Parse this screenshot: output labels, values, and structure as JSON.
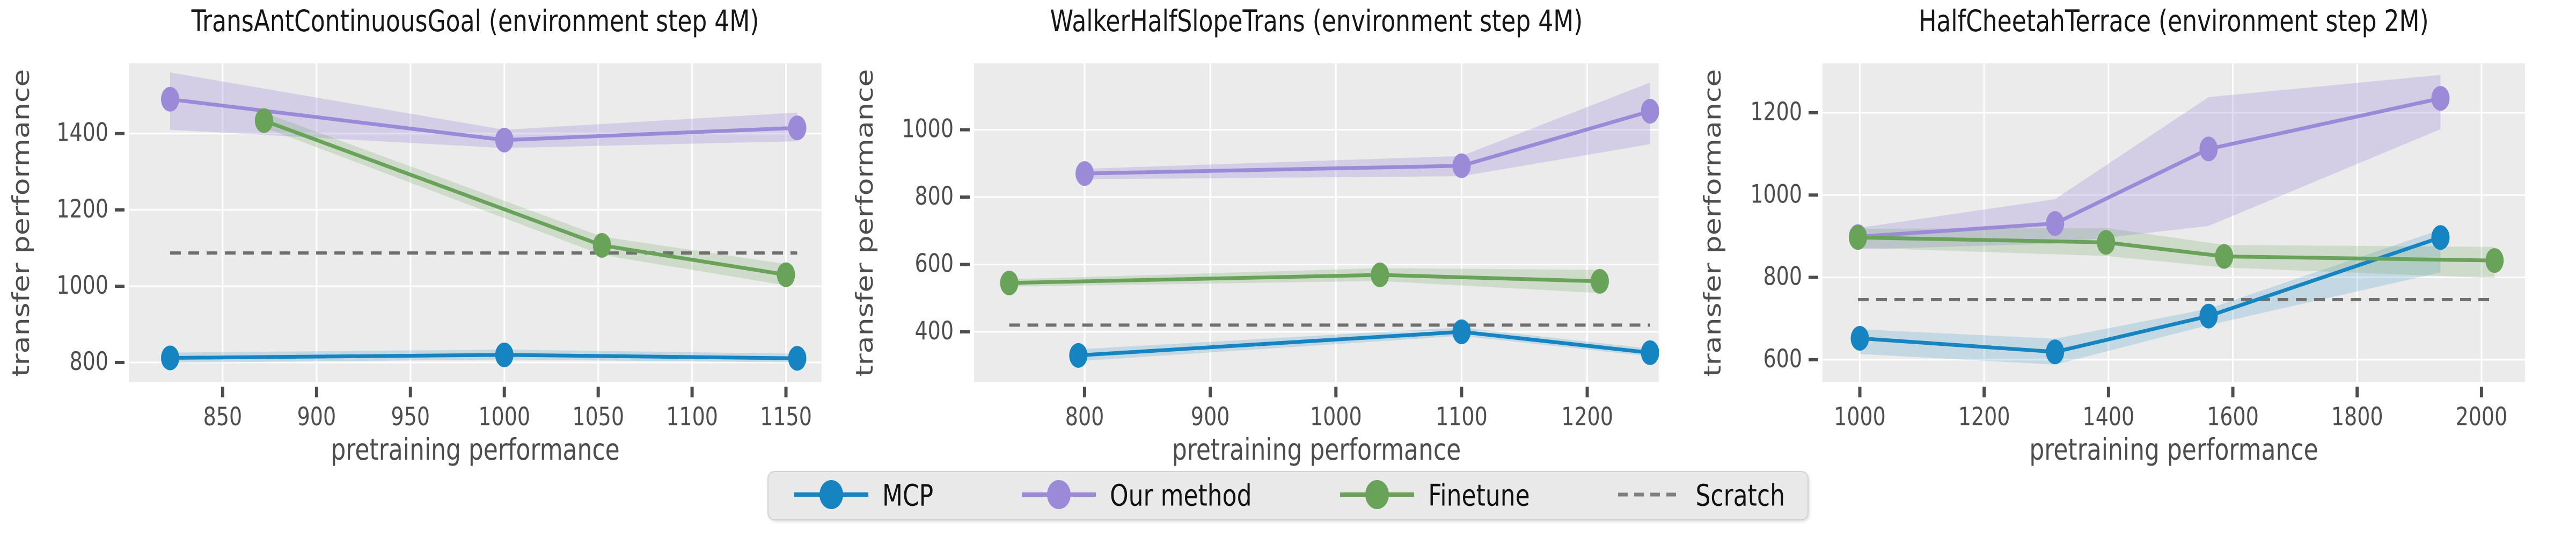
{
  "figure": {
    "background": "#ffffff",
    "plot_background": "#ebebeb",
    "grid_color": "#ffffff",
    "tick_color": "#4d4d4d",
    "label_color": "#4d4d4d",
    "title_color": "#161616",
    "baseline_color": "#707070"
  },
  "legend": {
    "items": [
      {
        "id": "mcp",
        "label": "MCP",
        "color": "#1584c1",
        "style": "line-marker"
      },
      {
        "id": "our-method",
        "label": "Our method",
        "color": "#9a8ad8",
        "style": "line-marker"
      },
      {
        "id": "finetune",
        "label": "Finetune",
        "color": "#69a259",
        "style": "line-marker"
      },
      {
        "id": "scratch",
        "label": "Scratch",
        "color": "#808080",
        "style": "dashed-line"
      }
    ]
  },
  "chart_data": [
    {
      "type": "line",
      "title": "TransAntContinuousGoal (environment step 4M)",
      "xlabel": "pretraining performance",
      "ylabel": "transfer performance",
      "xlim": [
        800,
        1169
      ],
      "ylim": [
        748,
        1584
      ],
      "xticks": [
        850,
        900,
        950,
        1000,
        1050,
        1100,
        1150
      ],
      "yticks": [
        800,
        1000,
        1200,
        1400
      ],
      "grid": true,
      "legend_position": "figure-bottom",
      "baseline": {
        "name": "Scratch",
        "value": 1087
      },
      "series": [
        {
          "name": "MCP",
          "color": "#1584c1",
          "band_opacity": 0.18,
          "x": [
            822,
            1000,
            1156
          ],
          "y": [
            812,
            820,
            811
          ],
          "band_low": [
            799,
            808,
            800
          ],
          "band_high": [
            826,
            834,
            823
          ]
        },
        {
          "name": "Our method",
          "color": "#9a8ad8",
          "band_opacity": 0.3,
          "x": [
            822,
            1000,
            1156
          ],
          "y": [
            1490,
            1383,
            1415
          ],
          "band_low": [
            1410,
            1362,
            1380
          ],
          "band_high": [
            1560,
            1410,
            1455
          ]
        },
        {
          "name": "Finetune",
          "color": "#69a259",
          "band_opacity": 0.22,
          "x": [
            872,
            1052,
            1150
          ],
          "y": [
            1434,
            1107,
            1030
          ],
          "band_low": [
            1416,
            1082,
            1002
          ],
          "band_high": [
            1455,
            1130,
            1058
          ]
        }
      ]
    },
    {
      "type": "line",
      "title": "WalkerHalfSlopeTrans (environment step 4M)",
      "xlabel": "pretraining performance",
      "ylabel": "transfer performance",
      "xlim": [
        712,
        1257
      ],
      "ylim": [
        250,
        1197
      ],
      "xticks": [
        800,
        900,
        1000,
        1100,
        1200
      ],
      "yticks": [
        400,
        600,
        800,
        1000
      ],
      "grid": true,
      "legend_position": "figure-bottom",
      "baseline": {
        "name": "Scratch",
        "value": 420
      },
      "series": [
        {
          "name": "MCP",
          "color": "#1584c1",
          "band_opacity": 0.18,
          "x": [
            795,
            1100,
            1250
          ],
          "y": [
            330,
            400,
            338
          ],
          "band_low": [
            313,
            388,
            327
          ],
          "band_high": [
            348,
            413,
            350
          ]
        },
        {
          "name": "Our method",
          "color": "#9a8ad8",
          "band_opacity": 0.3,
          "x": [
            800,
            1100,
            1250
          ],
          "y": [
            870,
            893,
            1055
          ],
          "band_low": [
            853,
            862,
            957
          ],
          "band_high": [
            884,
            922,
            1140
          ]
        },
        {
          "name": "Finetune",
          "color": "#69a259",
          "band_opacity": 0.22,
          "x": [
            740,
            1035,
            1210
          ],
          "y": [
            545,
            569,
            550
          ],
          "band_low": [
            534,
            551,
            515
          ],
          "band_high": [
            556,
            589,
            584
          ]
        }
      ]
    },
    {
      "type": "line",
      "title": "HalfCheetahTerrace (environment step 2M)",
      "xlabel": "pretraining performance",
      "ylabel": "transfer performance",
      "xlim": [
        940,
        2070
      ],
      "ylim": [
        545,
        1320
      ],
      "xticks": [
        1000,
        1200,
        1400,
        1600,
        1800,
        2000
      ],
      "yticks": [
        600,
        800,
        1000,
        1200
      ],
      "grid": true,
      "legend_position": "figure-bottom",
      "baseline": {
        "name": "Scratch",
        "value": 746
      },
      "series": [
        {
          "name": "MCP",
          "color": "#1584c1",
          "band_opacity": 0.18,
          "x": [
            1000,
            1314,
            1561,
            1934
          ],
          "y": [
            652,
            619,
            706,
            897
          ],
          "band_low": [
            614,
            588,
            684,
            812
          ],
          "band_high": [
            674,
            651,
            724,
            916
          ]
        },
        {
          "name": "Our method",
          "color": "#9a8ad8",
          "band_opacity": 0.3,
          "x": [
            997,
            1314,
            1561,
            1934
          ],
          "y": [
            899,
            931,
            1112,
            1235
          ],
          "band_low": [
            868,
            882,
            925,
            1160
          ],
          "band_high": [
            920,
            990,
            1238,
            1292
          ]
        },
        {
          "name": "Finetune",
          "color": "#69a259",
          "band_opacity": 0.22,
          "x": [
            997,
            1396,
            1586,
            2021
          ],
          "y": [
            897,
            885,
            851,
            841
          ],
          "band_low": [
            872,
            852,
            824,
            798
          ],
          "band_high": [
            918,
            920,
            879,
            874
          ]
        }
      ]
    }
  ]
}
